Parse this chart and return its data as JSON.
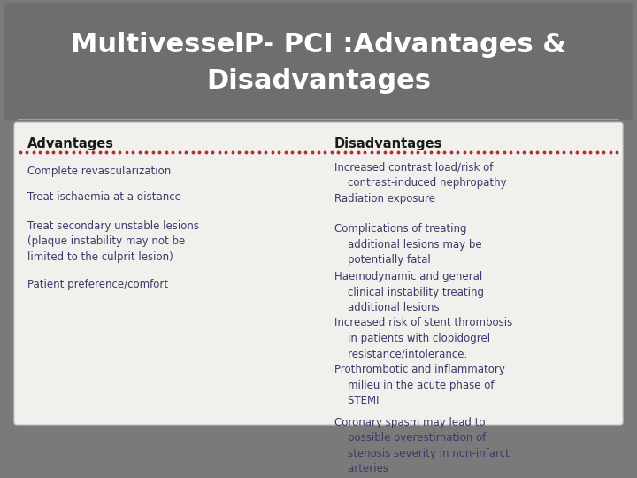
{
  "title_line1": "MultivesselP- PCI :Advantages &",
  "title_line2": "Disadvantages",
  "bg_color": "#7a7a7a",
  "table_bg": "#f2f0ec",
  "title_color": "#ffffff",
  "adv_header": "Advantages",
  "disadv_header": "Disadvantages",
  "header_text_color": "#1a1a1a",
  "advantages": [
    "Complete revascularization",
    "Treat ischaemia at a distance",
    "Treat secondary unstable lesions\n(plaque instability may not be\nlimited to the culprit lesion)",
    "Patient preference/comfort"
  ],
  "disadvantages": [
    "Increased contrast load/risk of\n    contrast-induced nephropathy",
    "Radiation exposure",
    "Complications of treating\n    additional lesions may be\n    potentially fatal",
    "Haemodynamic and general\n    clinical instability treating\n    additional lesions",
    "Increased risk of stent thrombosis\n    in patients with clopidogrel\n    resistance/intolerance.",
    "Prothrombotic and inflammatory\n    milieu in the acute phase of\n    STEMI",
    "Coronary spasm may lead to\n    possible overestimation of\n    stenosis severity in non-infarct\n    arteries"
  ],
  "text_color": "#3a3a6a",
  "dot_line_color": "#b03030",
  "title_fontsize": 22,
  "header_fontsize": 10.5,
  "body_fontsize": 8.5
}
